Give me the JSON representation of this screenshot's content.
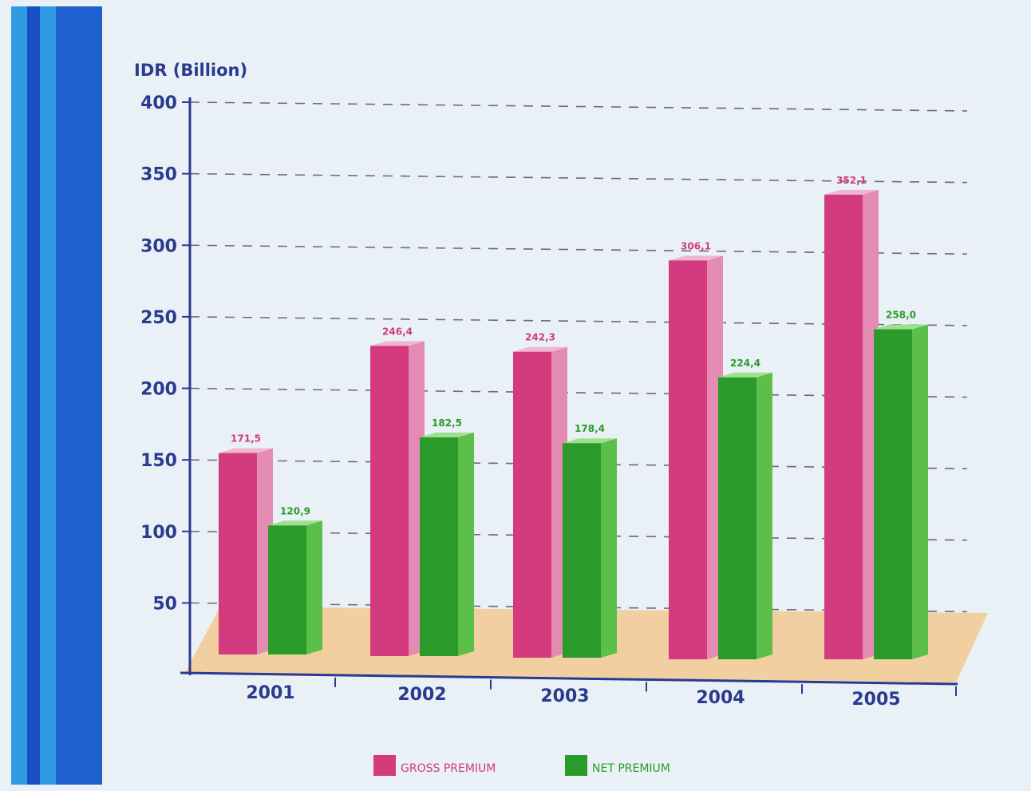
{
  "colors": {
    "gross": "#d43a7e",
    "gross_side": "#e48bb3",
    "gross_top": "#eeb6cf",
    "net": "#2a9b2a",
    "net_side": "#5cbf4a",
    "net_top": "#9fe08c",
    "axis": "#2a3a8f",
    "grid": "#6a6a78",
    "floor": "#f2cfa0",
    "stripe_light": "#2f9be3",
    "stripe_dark": "#1a4fc4"
  },
  "chart_data": {
    "type": "bar",
    "unit_label": "IDR (Billion)",
    "categories": [
      "2001",
      "2002",
      "2003",
      "2004",
      "2005"
    ],
    "series": [
      {
        "name": "GROSS PREMIUM",
        "values": [
          171.5,
          246.4,
          242.3,
          306.1,
          352.1
        ],
        "labels": [
          "171,5",
          "246,4",
          "242,3",
          "306,1",
          "352,1"
        ]
      },
      {
        "name": "NET PREMIUM",
        "values": [
          120.9,
          182.5,
          178.4,
          224.4,
          258.0
        ],
        "labels": [
          "120,9",
          "182,5",
          "178,4",
          "224,4",
          "258,0"
        ]
      }
    ],
    "y_ticks": [
      "400",
      "350",
      "300",
      "250",
      "200",
      "150",
      "100",
      "50"
    ],
    "ylim": [
      0,
      400
    ],
    "grid": "dashed horizontal",
    "legend_position": "bottom-center"
  }
}
